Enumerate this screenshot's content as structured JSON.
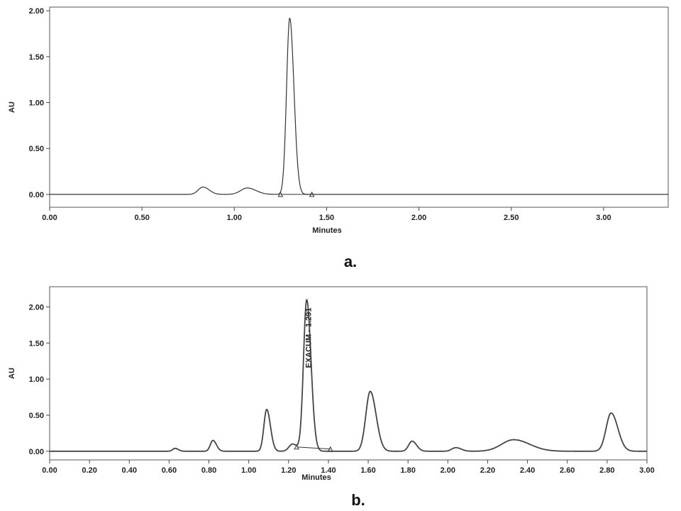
{
  "chart_data": [
    {
      "type": "line",
      "panel_label": "a.",
      "xlabel": "Minutes",
      "ylabel": "AU",
      "xlim": [
        0.0,
        3.35
      ],
      "ylim": [
        -0.14,
        2.04
      ],
      "x_ticks": [
        "0.00",
        "0.50",
        "1.00",
        "1.50",
        "2.00",
        "2.50",
        "3.00"
      ],
      "x_tick_values": [
        0.0,
        0.5,
        1.0,
        1.5,
        2.0,
        2.5,
        3.0
      ],
      "y_ticks": [
        "0.00",
        "0.50",
        "1.00",
        "1.50",
        "2.00"
      ],
      "y_tick_values": [
        0.0,
        0.5,
        1.0,
        1.5,
        2.0
      ],
      "series": [
        {
          "baseline": 0.0,
          "peaks": [
            {
              "rt": 0.83,
              "height": 0.08
            },
            {
              "rt": 1.07,
              "height": 0.07
            },
            {
              "rt": 1.3,
              "height": 1.92
            }
          ]
        }
      ],
      "integration_markers": [
        1.25,
        1.42
      ],
      "grid": false,
      "color": "#333333"
    },
    {
      "type": "line",
      "panel_label": "b.",
      "xlabel": "Minutes",
      "ylabel": "AU",
      "xlim": [
        0.0,
        3.0
      ],
      "ylim": [
        -0.12,
        2.28
      ],
      "x_ticks": [
        "0.00",
        "0.20",
        "0.40",
        "0.60",
        "0.80",
        "1.00",
        "1.20",
        "1.40",
        "1.60",
        "1.80",
        "2.00",
        "2.20",
        "2.40",
        "2.60",
        "2.80",
        "3.00"
      ],
      "x_tick_values": [
        0.0,
        0.2,
        0.4,
        0.6,
        0.8,
        1.0,
        1.2,
        1.4,
        1.6,
        1.8,
        2.0,
        2.2,
        2.4,
        2.6,
        2.8,
        3.0
      ],
      "y_ticks": [
        "0.00",
        "0.50",
        "1.00",
        "1.50",
        "2.00"
      ],
      "y_tick_values": [
        0.0,
        0.5,
        1.0,
        1.5,
        2.0
      ],
      "series": [
        {
          "baseline": 0.0,
          "peaks": [
            {
              "rt": 0.63,
              "height": 0.04
            },
            {
              "rt": 0.82,
              "height": 0.15
            },
            {
              "rt": 1.09,
              "height": 0.58
            },
            {
              "rt": 1.22,
              "height": 0.1
            },
            {
              "rt": 1.291,
              "height": 2.1
            },
            {
              "rt": 1.61,
              "height": 0.83
            },
            {
              "rt": 1.82,
              "height": 0.14
            },
            {
              "rt": 2.04,
              "height": 0.05
            },
            {
              "rt": 2.33,
              "height": 0.16
            },
            {
              "rt": 2.82,
              "height": 0.53
            }
          ]
        }
      ],
      "integration_markers": [
        1.24,
        1.41
      ],
      "peak_annotation": {
        "text": "EXACUM - 1.291",
        "rt": 1.291
      },
      "grid": false,
      "color": "#444444"
    }
  ]
}
